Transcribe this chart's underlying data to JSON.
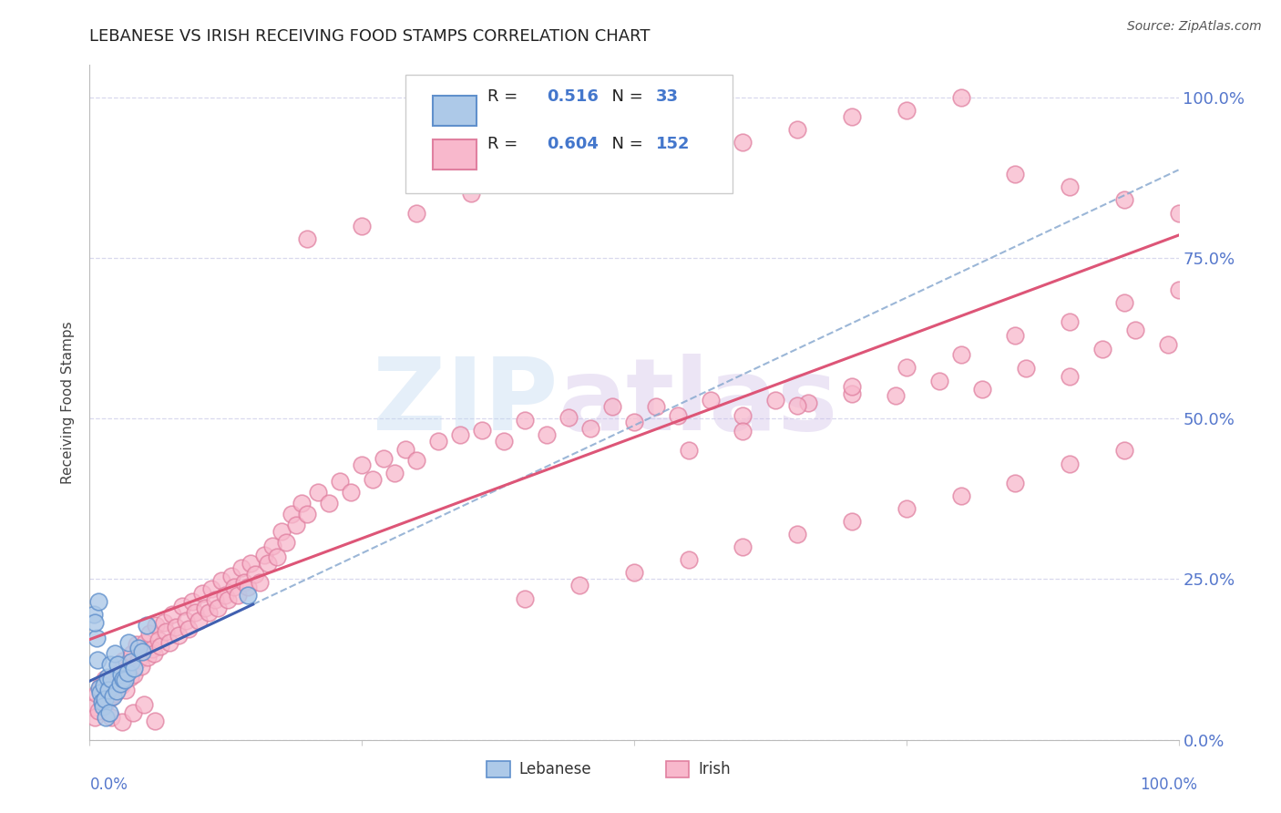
{
  "title": "LEBANESE VS IRISH RECEIVING FOOD STAMPS CORRELATION CHART",
  "source": "Source: ZipAtlas.com",
  "ylabel": "Receiving Food Stamps",
  "y_tick_labels": [
    "0.0%",
    "25.0%",
    "50.0%",
    "75.0%",
    "100.0%"
  ],
  "y_tick_values": [
    0,
    25,
    50,
    75,
    100
  ],
  "x_tick_label_left": "0.0%",
  "x_tick_label_right": "100.0%",
  "lebanese_label": "Lebanese",
  "irish_label": "Irish",
  "lebanese_r": "0.516",
  "irish_r": "0.604",
  "lebanese_n": "33",
  "irish_n": "152",
  "lebanese_face_color": "#adc9e8",
  "lebanese_edge_color": "#6090cc",
  "irish_face_color": "#f8b8cc",
  "irish_edge_color": "#e080a0",
  "lebanese_line_color": "#4060b0",
  "irish_line_color": "#dd5577",
  "leb_dash_color": "#8aaad0",
  "watermark_zip_color": "#c0d8f0",
  "watermark_atlas_color": "#d0c0e8",
  "grid_color": "#d8d8ee",
  "title_color": "#222222",
  "axis_label_color": "#5577cc",
  "background": "#ffffff",
  "legend_r_label_color": "#222222",
  "legend_val_color": "#4477cc",
  "source_color": "#555555",
  "leb_x": [
    0.4,
    0.6,
    0.7,
    0.9,
    1.0,
    1.1,
    1.2,
    1.3,
    1.4,
    1.5,
    1.6,
    1.7,
    1.8,
    1.9,
    2.0,
    2.1,
    2.3,
    2.5,
    2.6,
    2.8,
    2.9,
    3.1,
    3.2,
    3.5,
    3.6,
    3.8,
    4.1,
    4.5,
    4.8,
    5.2,
    0.5,
    0.8,
    14.5
  ],
  "leb_y": [
    19.5,
    15.8,
    12.5,
    8.1,
    7.4,
    5.9,
    5.2,
    8.5,
    6.3,
    3.5,
    9.7,
    7.8,
    4.2,
    11.8,
    9.5,
    6.8,
    13.5,
    7.6,
    11.8,
    8.8,
    10.2,
    9.5,
    9.3,
    10.5,
    15.2,
    12.1,
    11.2,
    14.3,
    13.7,
    17.8,
    18.2,
    21.5,
    22.5
  ],
  "irish_x": [
    0.3,
    0.5,
    0.6,
    0.8,
    1.0,
    1.2,
    1.4,
    1.5,
    1.7,
    1.9,
    2.1,
    2.3,
    2.5,
    2.7,
    2.9,
    3.1,
    3.3,
    3.5,
    3.7,
    3.9,
    4.1,
    4.3,
    4.5,
    4.7,
    4.9,
    5.1,
    5.3,
    5.5,
    5.7,
    5.9,
    6.1,
    6.3,
    6.5,
    6.8,
    7.0,
    7.3,
    7.6,
    7.9,
    8.2,
    8.5,
    8.8,
    9.1,
    9.4,
    9.7,
    10.0,
    10.3,
    10.6,
    10.9,
    11.2,
    11.5,
    11.8,
    12.1,
    12.4,
    12.7,
    13.0,
    13.3,
    13.6,
    13.9,
    14.2,
    14.5,
    14.8,
    15.2,
    15.6,
    16.0,
    16.4,
    16.8,
    17.2,
    17.6,
    18.0,
    18.5,
    19.0,
    19.5,
    20.0,
    21.0,
    22.0,
    23.0,
    24.0,
    25.0,
    26.0,
    27.0,
    28.0,
    29.0,
    30.0,
    32.0,
    34.0,
    36.0,
    38.0,
    40.0,
    42.0,
    44.0,
    46.0,
    48.0,
    50.0,
    52.0,
    54.0,
    57.0,
    60.0,
    63.0,
    66.0,
    70.0,
    74.0,
    78.0,
    82.0,
    86.0,
    90.0,
    93.0,
    96.0,
    99.0,
    55.0,
    60.0,
    65.0,
    70.0,
    75.0,
    80.0,
    85.0,
    90.0,
    95.0,
    100.0,
    40.0,
    45.0,
    50.0,
    55.0,
    60.0,
    65.0,
    70.0,
    75.0,
    80.0,
    85.0,
    90.0,
    95.0,
    20.0,
    25.0,
    30.0,
    35.0,
    40.0,
    45.0,
    50.0,
    55.0,
    60.0,
    65.0,
    70.0,
    75.0,
    80.0,
    85.0,
    90.0,
    95.0,
    100.0,
    2.0,
    3.0,
    4.0,
    5.0,
    6.0
  ],
  "irish_y": [
    5.0,
    3.5,
    7.2,
    4.5,
    8.3,
    6.1,
    9.5,
    5.8,
    7.9,
    6.5,
    8.8,
    7.2,
    9.1,
    10.5,
    8.5,
    12.3,
    7.8,
    11.2,
    9.8,
    13.5,
    10.2,
    14.8,
    12.5,
    11.5,
    13.8,
    15.2,
    12.8,
    16.5,
    14.2,
    13.5,
    17.8,
    15.5,
    14.5,
    18.2,
    16.8,
    15.2,
    19.5,
    17.5,
    16.2,
    20.8,
    18.5,
    17.2,
    21.5,
    19.8,
    18.5,
    22.8,
    20.5,
    19.8,
    23.5,
    21.8,
    20.5,
    24.8,
    22.5,
    21.8,
    25.5,
    23.8,
    22.5,
    26.8,
    24.5,
    23.8,
    27.5,
    25.8,
    24.5,
    28.8,
    27.5,
    30.2,
    28.5,
    32.5,
    30.8,
    35.2,
    33.5,
    36.8,
    35.2,
    38.5,
    36.8,
    40.2,
    38.5,
    42.8,
    40.5,
    43.8,
    41.5,
    45.2,
    43.5,
    46.5,
    47.5,
    48.2,
    46.5,
    49.8,
    47.5,
    50.2,
    48.5,
    51.8,
    49.5,
    51.8,
    50.5,
    52.8,
    50.5,
    52.8,
    52.5,
    53.8,
    53.5,
    55.8,
    54.5,
    57.8,
    56.5,
    60.8,
    63.8,
    61.5,
    45.0,
    48.0,
    52.0,
    55.0,
    58.0,
    60.0,
    63.0,
    65.0,
    68.0,
    70.0,
    22.0,
    24.0,
    26.0,
    28.0,
    30.0,
    32.0,
    34.0,
    36.0,
    38.0,
    40.0,
    43.0,
    45.0,
    78.0,
    80.0,
    82.0,
    85.0,
    87.0,
    88.0,
    90.0,
    91.0,
    93.0,
    95.0,
    97.0,
    98.0,
    100.0,
    88.0,
    86.0,
    84.0,
    82.0,
    3.5,
    2.8,
    4.2,
    5.5,
    3.0
  ]
}
